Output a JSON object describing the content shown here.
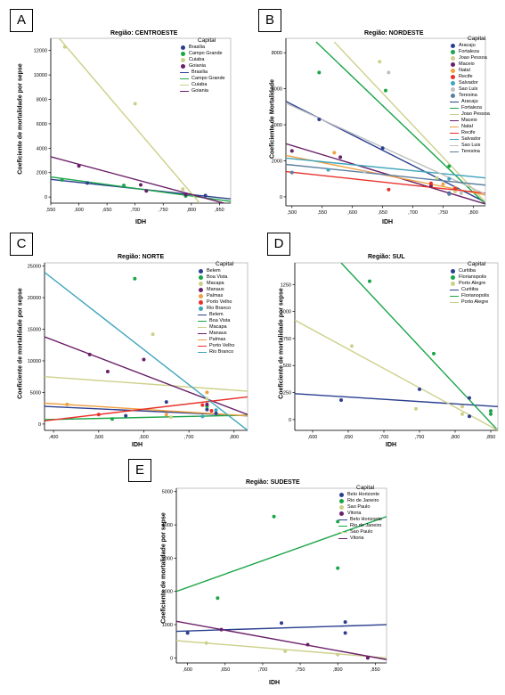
{
  "chart_data": [
    {
      "id": "A",
      "type": "scatter",
      "title": "Região: CENTROESTE",
      "xlabel": "IDH",
      "ylabel": "Coeficiente de mortalidade por sepse",
      "xlim": [
        0.55,
        0.87
      ],
      "ylim": [
        -500,
        13000
      ],
      "xticks": [
        0.55,
        0.6,
        0.65,
        0.7,
        0.75,
        0.8,
        0.85
      ],
      "xtick_labels": [
        ",550",
        ",600",
        ",650",
        ",700",
        ",750",
        ",800",
        ",850"
      ],
      "yticks": [
        0,
        2000,
        4000,
        6000,
        8000,
        10000,
        12000
      ],
      "ytick_labels": [
        "0",
        "2000",
        "4000",
        "6000",
        "8000",
        "10000",
        "12000"
      ],
      "legend_title": "Capital",
      "series": [
        {
          "name": "Brasilia",
          "color": "#2b3f8f",
          "points": [
            [
              0.615,
              1150
            ],
            [
              0.79,
              180
            ],
            [
              0.825,
              120
            ]
          ],
          "fit": [
            [
              0.55,
              1450
            ],
            [
              0.87,
              -150
            ]
          ]
        },
        {
          "name": "Campo Grande",
          "color": "#1aa548",
          "points": [
            [
              0.57,
              1400
            ],
            [
              0.68,
              950
            ],
            [
              0.79,
              80
            ]
          ],
          "fit": [
            [
              0.55,
              1650
            ],
            [
              0.87,
              -350
            ]
          ]
        },
        {
          "name": "Cuiaba",
          "color": "#cdd08a",
          "points": [
            [
              0.575,
              12300
            ],
            [
              0.7,
              7650
            ],
            [
              0.785,
              650
            ]
          ],
          "fit": [
            [
              0.565,
              13000
            ],
            [
              0.815,
              -500
            ]
          ]
        },
        {
          "name": "Goiania",
          "color": "#6a1f68",
          "points": [
            [
              0.6,
              2550
            ],
            [
              0.71,
              1000
            ],
            [
              0.72,
              500
            ],
            [
              0.79,
              200
            ]
          ],
          "fit": [
            [
              0.55,
              3300
            ],
            [
              0.87,
              -650
            ]
          ]
        }
      ],
      "legend_point_labels": [
        "Brasilia",
        "Campo Grande",
        "Cuiaba",
        "Goiania"
      ],
      "legend_line_labels": [
        "Brasilia",
        "Campo Grande",
        "Cuiaba",
        "Goiania"
      ]
    },
    {
      "id": "B",
      "type": "scatter",
      "title": "Região: NORDESTE",
      "xlabel": "IDH",
      "ylabel": "Coeficiente de Mortalidade",
      "xlim": [
        0.49,
        0.82
      ],
      "ylim": [
        -500,
        8800
      ],
      "xticks": [
        0.5,
        0.55,
        0.6,
        0.65,
        0.7,
        0.75,
        0.8
      ],
      "xtick_labels": [
        ",500",
        ",550",
        ",600",
        ",650",
        ",700",
        ",750",
        ",800"
      ],
      "yticks": [
        0,
        2000,
        4000,
        6000,
        8000
      ],
      "ytick_labels": [
        "0",
        "2000",
        "4000",
        "6000",
        "8000"
      ],
      "legend_title": "Capital",
      "series": [
        {
          "name": "Aracaju",
          "color": "#2b3f8f",
          "points": [
            [
              0.545,
              4300
            ],
            [
              0.65,
              2700
            ],
            [
              0.76,
              200
            ]
          ],
          "fit": [
            [
              0.49,
              5300
            ],
            [
              0.82,
              -300
            ]
          ]
        },
        {
          "name": "Fortaleza",
          "color": "#1aa548",
          "points": [
            [
              0.545,
              6900
            ],
            [
              0.655,
              5900
            ],
            [
              0.76,
              1700
            ]
          ],
          "fit": [
            [
              0.54,
              8600
            ],
            [
              0.82,
              -400
            ]
          ]
        },
        {
          "name": "Joao Pessoa",
          "color": "#cdd08a",
          "points": [
            [
              0.645,
              7500
            ],
            [
              0.74,
              1050
            ],
            [
              0.77,
              300
            ]
          ],
          "fit": [
            [
              0.57,
              8600
            ],
            [
              0.82,
              -300
            ]
          ]
        },
        {
          "name": "Maceio",
          "color": "#6a1f68",
          "points": [
            [
              0.5,
              2550
            ],
            [
              0.58,
              2200
            ],
            [
              0.73,
              600
            ]
          ],
          "fit": [
            [
              0.49,
              2950
            ],
            [
              0.82,
              -400
            ]
          ]
        },
        {
          "name": "Natal",
          "color": "#f0a040",
          "points": [
            [
              0.57,
              2450
            ],
            [
              0.75,
              700
            ],
            [
              0.77,
              500
            ]
          ],
          "fit": [
            [
              0.49,
              2300
            ],
            [
              0.82,
              100
            ]
          ]
        },
        {
          "name": "Recife",
          "color": "#e8312a",
          "points": [
            [
              0.66,
              400
            ],
            [
              0.73,
              750
            ],
            [
              0.77,
              450
            ]
          ],
          "fit": [
            [
              0.49,
              1400
            ],
            [
              0.82,
              200
            ]
          ]
        },
        {
          "name": "Salvador",
          "color": "#3fa5bd",
          "points": [
            [
              0.56,
              1500
            ],
            [
              0.76,
              1000
            ]
          ],
          "fit": [
            [
              0.49,
              2150
            ],
            [
              0.82,
              1050
            ]
          ]
        },
        {
          "name": "Sao Luis",
          "color": "#bfbfbf",
          "points": [
            [
              0.66,
              6900
            ],
            [
              0.62,
              1400
            ],
            [
              0.78,
              200
            ]
          ],
          "fit": [
            [
              0.49,
              5200
            ],
            [
              0.82,
              150
            ]
          ]
        },
        {
          "name": "Teresina",
          "color": "#5b7f9e",
          "points": [
            [
              0.5,
              1350
            ],
            [
              0.76,
              150
            ]
          ],
          "fit": [
            [
              0.49,
              1800
            ],
            [
              0.82,
              650
            ]
          ]
        }
      ],
      "legend_point_labels": [
        "Aracaju",
        "Fortaleza",
        "Joao Pessoa",
        "Maceio",
        "Natal",
        "Recife",
        "Salvador",
        "Sao Luis",
        "Teresina"
      ],
      "legend_line_labels": [
        "Aracaju",
        "Fortaleza",
        "Joao Pessoa",
        "Maceio",
        "Natal",
        "Recife",
        "Salvador",
        "Sao Luis",
        "Teresina"
      ]
    },
    {
      "id": "C",
      "type": "scatter",
      "title": "Região: NORTE",
      "xlabel": "IDH",
      "ylabel": "Coeficiente de mortalidade por sepse",
      "xlim": [
        0.38,
        0.83
      ],
      "ylim": [
        -1000,
        25500
      ],
      "xticks": [
        0.4,
        0.5,
        0.6,
        0.7,
        0.8
      ],
      "xtick_labels": [
        ",400",
        ",500",
        ",600",
        ",700",
        ",800"
      ],
      "yticks": [
        0,
        5000,
        10000,
        15000,
        20000,
        25000
      ],
      "ytick_labels": [
        "0",
        "5000",
        "10000",
        "15000",
        "20000",
        "25000"
      ],
      "legend_title": "Capital",
      "series": [
        {
          "name": "Belem",
          "color": "#2b3f8f",
          "points": [
            [
              0.56,
              1300
            ],
            [
              0.65,
              3500
            ],
            [
              0.74,
              2300
            ],
            [
              0.76,
              1700
            ]
          ],
          "fit": [
            [
              0.38,
              2800
            ],
            [
              0.83,
              1300
            ]
          ]
        },
        {
          "name": "Boa Vista",
          "color": "#1aa548",
          "points": [
            [
              0.58,
              23000
            ],
            [
              0.53,
              800
            ],
            [
              0.74,
              2800
            ]
          ],
          "fit": [
            [
              0.38,
              700
            ],
            [
              0.83,
              1400
            ]
          ]
        },
        {
          "name": "Macapa",
          "color": "#cdd08a",
          "points": [
            [
              0.62,
              14200
            ],
            [
              0.66,
              1100
            ],
            [
              0.74,
              4000
            ]
          ],
          "fit": [
            [
              0.38,
              7500
            ],
            [
              0.83,
              5200
            ]
          ]
        },
        {
          "name": "Manaus",
          "color": "#6a1f68",
          "points": [
            [
              0.48,
              11000
            ],
            [
              0.52,
              8300
            ],
            [
              0.6,
              10200
            ],
            [
              0.74,
              3100
            ]
          ],
          "fit": [
            [
              0.38,
              13800
            ],
            [
              0.83,
              1500
            ]
          ]
        },
        {
          "name": "Palmas",
          "color": "#f0a040",
          "points": [
            [
              0.43,
              3100
            ],
            [
              0.65,
              1500
            ],
            [
              0.74,
              5000
            ]
          ],
          "fit": [
            [
              0.38,
              3300
            ],
            [
              0.83,
              1300
            ]
          ]
        },
        {
          "name": "Porto Velho",
          "color": "#e8312a",
          "points": [
            [
              0.5,
              1500
            ],
            [
              0.73,
              3000
            ],
            [
              0.75,
              2100
            ]
          ],
          "fit": [
            [
              0.38,
              500
            ],
            [
              0.83,
              4300
            ]
          ]
        },
        {
          "name": "Rio Branco",
          "color": "#3fa5bd",
          "points": [
            [
              0.73,
              1200
            ],
            [
              0.76,
              2200
            ]
          ],
          "fit": [
            [
              0.38,
              24000
            ],
            [
              0.83,
              -1000
            ]
          ]
        }
      ],
      "legend_point_labels": [
        "Belem",
        "Boa Vista",
        "Macapa",
        "Manaus",
        "Palmas",
        "Porto Velho",
        "Rio Branco"
      ],
      "legend_line_labels": [
        "Belem",
        "Boa Vista",
        "Macapa",
        "Manaus",
        "Palmas",
        "Porto Velho",
        "Rio Branco"
      ]
    },
    {
      "id": "D",
      "type": "scatter",
      "title": "Região: SUL",
      "xlabel": "IDH",
      "ylabel": "Coeficiente de mortalidade por sepse",
      "xlim": [
        0.575,
        0.86
      ],
      "ylim": [
        -100,
        1450
      ],
      "xticks": [
        0.6,
        0.65,
        0.7,
        0.75,
        0.8,
        0.85
      ],
      "xtick_labels": [
        ",600",
        ",650",
        ",700",
        ",750",
        ",800",
        ",850"
      ],
      "yticks": [
        0,
        250,
        500,
        750,
        1000,
        1250
      ],
      "ytick_labels": [
        "0",
        "250",
        "500",
        "750",
        "1000",
        "1250"
      ],
      "legend_title": "Capital",
      "series": [
        {
          "name": "Curitiba",
          "color": "#2b3f8f",
          "points": [
            [
              0.64,
              180
            ],
            [
              0.75,
              280
            ],
            [
              0.82,
              200
            ],
            [
              0.82,
              30
            ]
          ],
          "fit": [
            [
              0.575,
              240
            ],
            [
              0.86,
              120
            ]
          ]
        },
        {
          "name": "Florianopolis",
          "color": "#1aa548",
          "points": [
            [
              0.68,
              1280
            ],
            [
              0.77,
              610
            ],
            [
              0.85,
              80
            ],
            [
              0.85,
              50
            ]
          ],
          "fit": [
            [
              0.64,
              1450
            ],
            [
              0.86,
              -100
            ]
          ]
        },
        {
          "name": "Porto Alegre",
          "color": "#cdd08a",
          "points": [
            [
              0.655,
              680
            ],
            [
              0.745,
              100
            ],
            [
              0.81,
              50
            ],
            [
              0.81,
              120
            ]
          ],
          "fit": [
            [
              0.575,
              920
            ],
            [
              0.86,
              -100
            ]
          ]
        }
      ],
      "legend_point_labels": [
        "Curitiba",
        "Florianopolis",
        "Porto Alegre"
      ],
      "legend_line_labels": [
        "Curitiba",
        "Florianopolis",
        "Porto Alegre"
      ]
    },
    {
      "id": "E",
      "type": "scatter",
      "title": "Região: SUDESTE",
      "xlabel": "IDH",
      "ylabel": "Coeficiente de mortalidade por sepse",
      "xlim": [
        0.585,
        0.865
      ],
      "ylim": [
        -150,
        5100
      ],
      "xticks": [
        0.6,
        0.65,
        0.7,
        0.75,
        0.8,
        0.85
      ],
      "xtick_labels": [
        ",600",
        ",650",
        ",700",
        ",750",
        ",800",
        ",850"
      ],
      "yticks": [
        0,
        1000,
        2000,
        3000,
        4000,
        5000
      ],
      "ytick_labels": [
        "0",
        "1000",
        "2000",
        "3000",
        "4000",
        "5000"
      ],
      "legend_title": "Capital",
      "series": [
        {
          "name": "Belo Horizonte",
          "color": "#2b3f8f",
          "points": [
            [
              0.6,
              750
            ],
            [
              0.725,
              1050
            ],
            [
              0.81,
              1080
            ],
            [
              0.81,
              750
            ]
          ],
          "fit": [
            [
              0.585,
              800
            ],
            [
              0.865,
              1000
            ]
          ]
        },
        {
          "name": "Rio de Janeiro",
          "color": "#1aa548",
          "points": [
            [
              0.64,
              1800
            ],
            [
              0.715,
              4250
            ],
            [
              0.8,
              4100
            ],
            [
              0.8,
              2700
            ]
          ],
          "fit": [
            [
              0.585,
              2000
            ],
            [
              0.865,
              4250
            ]
          ]
        },
        {
          "name": "Sao Paulo",
          "color": "#cdd08a",
          "points": [
            [
              0.625,
              450
            ],
            [
              0.73,
              200
            ],
            [
              0.8,
              100
            ]
          ],
          "fit": [
            [
              0.585,
              520
            ],
            [
              0.865,
              0
            ]
          ]
        },
        {
          "name": "Vitoria",
          "color": "#6a1f68",
          "points": [
            [
              0.645,
              850
            ],
            [
              0.76,
              400
            ],
            [
              0.84,
              0
            ]
          ],
          "fit": [
            [
              0.585,
              1100
            ],
            [
              0.865,
              -50
            ]
          ]
        }
      ],
      "legend_point_labels": [
        "Belo Horizonte",
        "Rio de Janeiro",
        "Sao Paulo",
        "Vitoria"
      ],
      "legend_line_labels": [
        "Belo Horizonte",
        "Rio de Janeiro",
        "Sao Paulo",
        "Vitoria"
      ]
    }
  ]
}
